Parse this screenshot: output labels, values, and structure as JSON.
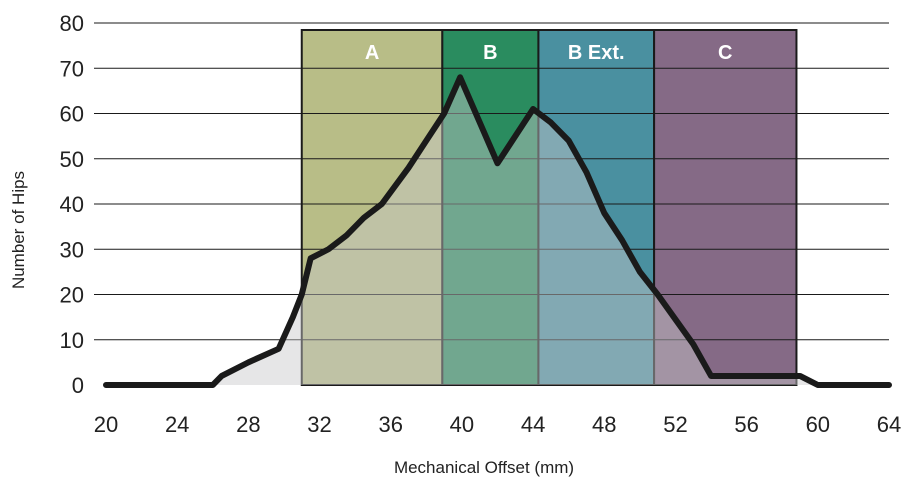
{
  "chart_data": {
    "type": "area",
    "title": "",
    "xlabel": "Mechanical Offset (mm)",
    "ylabel": "Number of Hips",
    "xlim": [
      20,
      64
    ],
    "ylim": [
      0,
      80
    ],
    "x_ticks": [
      20,
      24,
      28,
      32,
      36,
      40,
      44,
      48,
      52,
      56,
      60,
      64
    ],
    "y_ticks": [
      0,
      10,
      20,
      30,
      40,
      50,
      60,
      70,
      80
    ],
    "grid": "horizontal",
    "bands": [
      {
        "label": "A",
        "from": 31.0,
        "to": 38.9,
        "color": "#b8bd87"
      },
      {
        "label": "B",
        "from": 38.9,
        "to": 44.3,
        "color": "#2a8c5f"
      },
      {
        "label": "B Ext.",
        "from": 44.3,
        "to": 50.8,
        "color": "#4a90a0"
      },
      {
        "label": "C",
        "from": 50.8,
        "to": 58.8,
        "color": "#856a86"
      }
    ],
    "series": [
      {
        "color": "#1a1a1a",
        "fill": "#c8c8ca",
        "x": [
          20,
          26,
          26.5,
          28,
          29.7,
          30.5,
          31.0,
          31.5,
          32.5,
          33.5,
          34.5,
          35.5,
          37,
          38,
          39,
          39.9,
          42.0,
          44.0,
          45.0,
          46.0,
          47.0,
          48,
          49,
          50,
          51,
          53,
          54,
          56,
          58,
          59,
          60,
          64
        ],
        "y": [
          0,
          0,
          2,
          5,
          8,
          15,
          20,
          28,
          30,
          33,
          37,
          40,
          48,
          54,
          60,
          68,
          49,
          61,
          58,
          54,
          47,
          38,
          32,
          25,
          20,
          9,
          2,
          2,
          2,
          2,
          0,
          0
        ]
      }
    ]
  }
}
